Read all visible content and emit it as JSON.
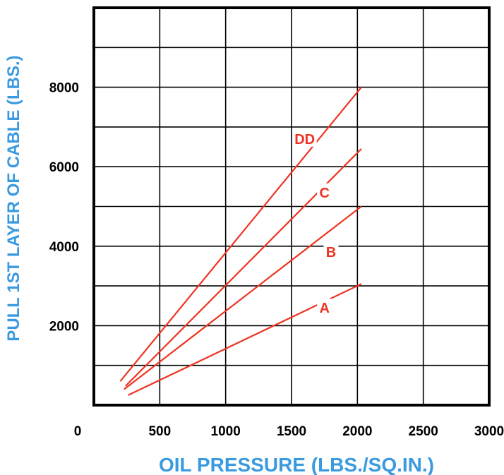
{
  "chart_data": {
    "type": "line",
    "title": "",
    "xlabel": "OIL PRESSURE (LBS./SQ.IN.)",
    "ylabel": "PULL 1ST LAYER OF CABLE (LBS.)",
    "xlim": [
      0,
      3000
    ],
    "ylim": [
      0,
      10000
    ],
    "x_ticks": [
      0,
      500,
      1000,
      1500,
      2000,
      2500,
      3000
    ],
    "x_tick_labels": [
      "0",
      "500",
      "1000",
      "1500",
      "2000",
      "2500",
      "3000"
    ],
    "y_ticks": [
      2000,
      4000,
      6000,
      8000
    ],
    "y_tick_labels": [
      "2000",
      "4000",
      "6000",
      "8000"
    ],
    "grid": true,
    "series_color": "#ee3322",
    "axis_title_color": "#3a9ae0",
    "series": [
      {
        "name": "DD",
        "x": [
          200,
          2030
        ],
        "y": [
          600,
          8000
        ],
        "label_at": [
          1600,
          6700
        ]
      },
      {
        "name": "C",
        "x": [
          240,
          2030
        ],
        "y": [
          480,
          6450
        ],
        "label_at": [
          1750,
          5350
        ]
      },
      {
        "name": "B",
        "x": [
          230,
          2030
        ],
        "y": [
          400,
          5000
        ],
        "label_at": [
          1800,
          3850
        ]
      },
      {
        "name": "A",
        "x": [
          260,
          2030
        ],
        "y": [
          250,
          3050
        ],
        "label_at": [
          1750,
          2450
        ]
      }
    ]
  }
}
